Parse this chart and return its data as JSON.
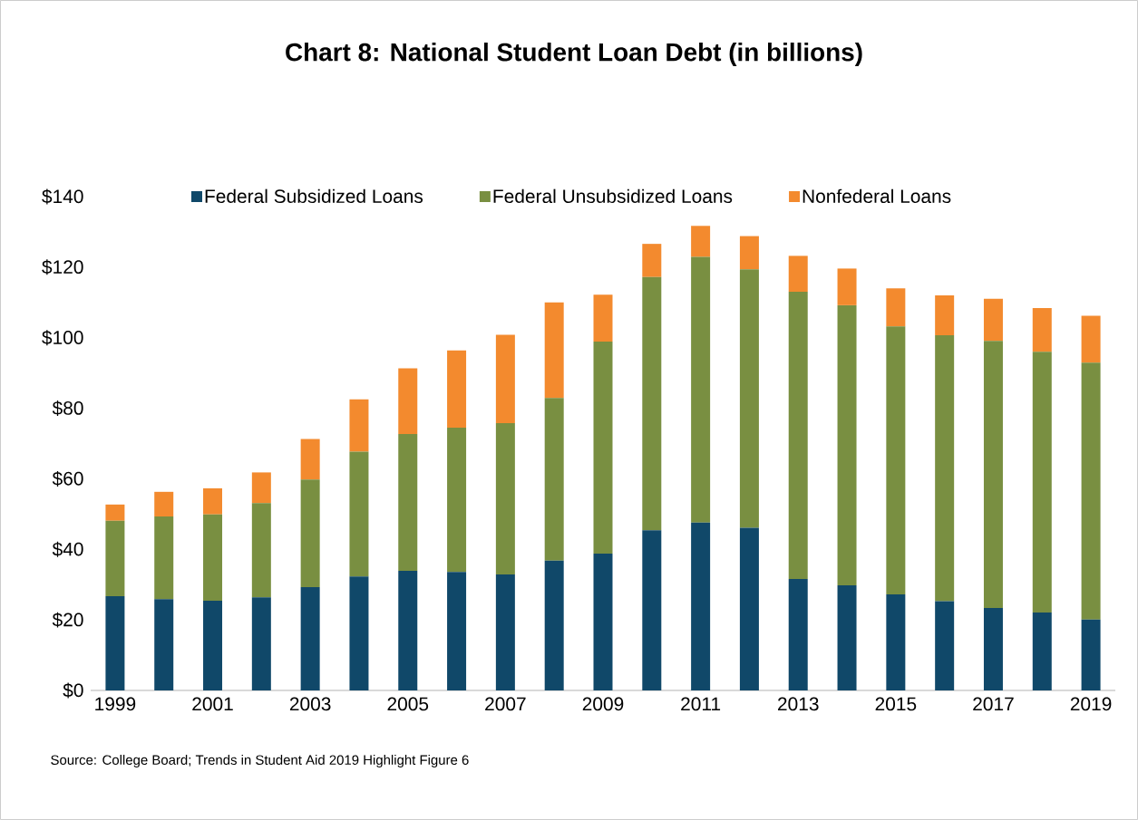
{
  "chart_data": {
    "type": "bar",
    "stacked": true,
    "title": "Chart 8: National Student Loan Debt (in billions)",
    "categories": [
      "1999",
      null,
      "2001",
      null,
      "2003",
      null,
      "2005",
      null,
      "2007",
      null,
      "2009",
      null,
      "2011",
      null,
      "2013",
      null,
      "2015",
      null,
      "2017",
      null,
      "2019"
    ],
    "series": [
      {
        "name": "Federal Subsidized Loans",
        "color": "#104869",
        "values": [
          26.7,
          25.9,
          25.4,
          26.4,
          29.3,
          32.3,
          33.9,
          33.6,
          32.9,
          36.8,
          38.8,
          45.4,
          47.6,
          46.1,
          31.6,
          29.8,
          27.2,
          25.3,
          23.4,
          22.1,
          20.1
        ]
      },
      {
        "name": "Federal Unsubsidized Loans",
        "color": "#798f41",
        "values": [
          21.4,
          23.4,
          24.5,
          26.7,
          30.5,
          35.4,
          38.8,
          40.9,
          42.9,
          46.1,
          60.1,
          71.8,
          75.3,
          73.3,
          81.4,
          79.4,
          76.0,
          75.4,
          75.7,
          73.9,
          72.8
        ]
      },
      {
        "name": "Nonfederal Loans",
        "color": "#f38a2e",
        "values": [
          4.6,
          7.0,
          7.4,
          8.7,
          11.5,
          14.8,
          18.6,
          21.9,
          25.0,
          27.1,
          13.3,
          9.4,
          8.8,
          9.4,
          10.2,
          10.4,
          10.8,
          11.3,
          11.9,
          12.4,
          13.3
        ]
      }
    ],
    "ylim": [
      0,
      140
    ],
    "yticks": [
      {
        "value": 0,
        "label": "$0"
      },
      {
        "value": 20,
        "label": "$20"
      },
      {
        "value": 40,
        "label": "$40"
      },
      {
        "value": 60,
        "label": "$60"
      },
      {
        "value": 80,
        "label": "$80"
      },
      {
        "value": 100,
        "label": "$100"
      },
      {
        "value": 120,
        "label": "$120"
      },
      {
        "value": 140,
        "label": "$140"
      }
    ],
    "legend": "top",
    "annotations": [
      "Source: College Board; Trends in Student Aid 2019 Highlight Figure 6"
    ]
  }
}
